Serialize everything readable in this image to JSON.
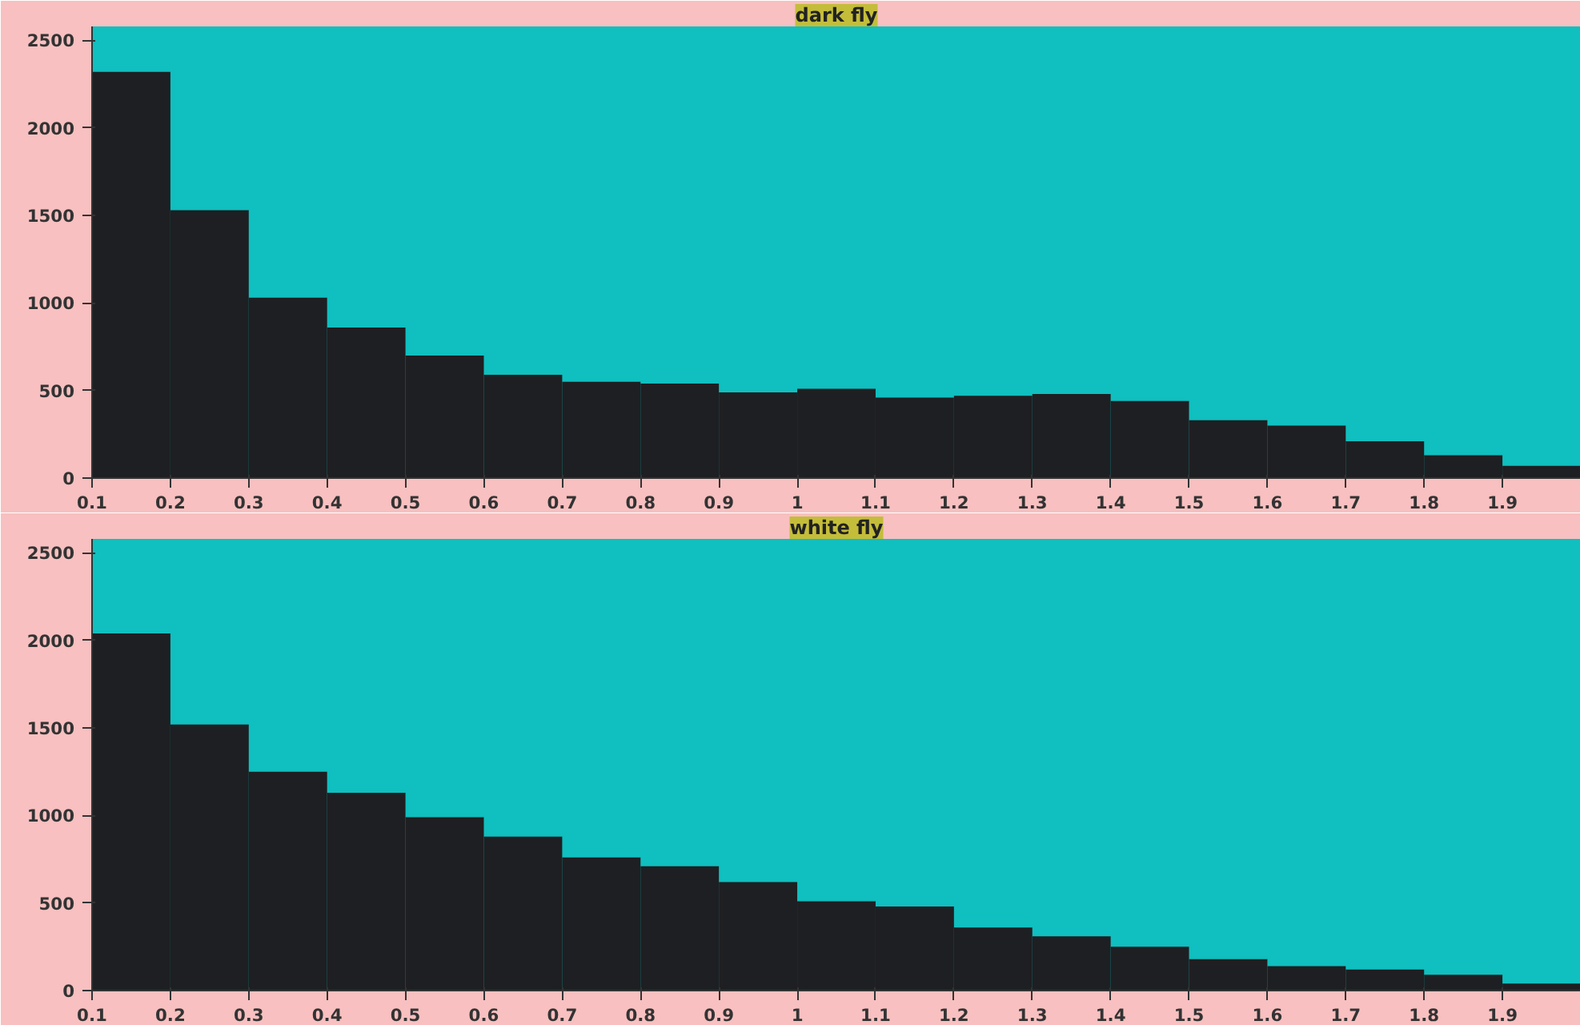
{
  "chart_data": [
    {
      "type": "histogram",
      "title": "dark fly",
      "color": "#1e1f22",
      "bins": [
        0.1,
        0.2,
        0.3,
        0.4,
        0.5,
        0.6,
        0.7,
        0.8,
        0.9,
        1.0,
        1.1,
        1.2,
        1.3,
        1.4,
        1.5,
        1.6,
        1.7,
        1.8,
        1.9,
        2.0
      ],
      "values": [
        2320,
        1530,
        1030,
        860,
        700,
        590,
        550,
        540,
        490,
        510,
        460,
        470,
        480,
        440,
        330,
        300,
        210,
        130,
        70
      ],
      "xlim": [
        0.1,
        2.0
      ],
      "xticks": [
        0.1,
        0.2,
        0.3,
        0.4,
        0.5,
        0.6,
        0.7,
        0.8,
        0.9,
        1,
        1.1,
        1.2,
        1.3,
        1.4,
        1.5,
        1.6,
        1.7,
        1.8,
        1.9
      ],
      "ylim": [
        0,
        2580
      ],
      "yticks": [
        0,
        500,
        1000,
        1500,
        2000,
        2500
      ]
    },
    {
      "type": "histogram",
      "title": "white fly",
      "color": "#1e1f22",
      "bins": [
        0.1,
        0.2,
        0.3,
        0.4,
        0.5,
        0.6,
        0.7,
        0.8,
        0.9,
        1.0,
        1.1,
        1.2,
        1.3,
        1.4,
        1.5,
        1.6,
        1.7,
        1.8,
        1.9,
        2.0
      ],
      "values": [
        2040,
        1520,
        1250,
        1130,
        990,
        880,
        760,
        710,
        620,
        510,
        480,
        360,
        310,
        250,
        180,
        140,
        120,
        90,
        40
      ],
      "xlim": [
        0.1,
        2.0
      ],
      "xticks": [
        0.1,
        0.2,
        0.3,
        0.4,
        0.5,
        0.6,
        0.7,
        0.8,
        0.9,
        1,
        1.1,
        1.2,
        1.3,
        1.4,
        1.5,
        1.6,
        1.7,
        1.8,
        1.9
      ],
      "ylim": [
        0,
        2580
      ],
      "yticks": [
        0,
        500,
        1000,
        1500,
        2000,
        2500
      ]
    }
  ]
}
